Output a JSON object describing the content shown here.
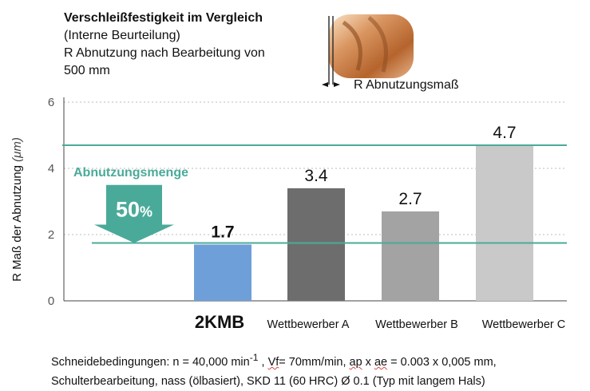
{
  "header": {
    "title": "Verschleißfestigkeit im Vergleich",
    "subtitle": "(Interne Beurteilung)",
    "line3": "R Abnutzung nach Bearbeitung von",
    "line4": "500 mm",
    "r_measure_label": "R Abnutzungsmaß"
  },
  "chart_data": {
    "type": "bar",
    "categories": [
      "2KMB",
      "Wettbewerber A",
      "Wettbewerber B",
      "Wettbewerber C"
    ],
    "values": [
      1.7,
      3.4,
      2.7,
      4.7
    ],
    "value_labels": [
      "1.7",
      "3.4",
      "2.7",
      "4.7"
    ],
    "ylabel": "R Maß der Abnutzung",
    "yunit": "(μm)",
    "ylim": [
      0,
      6
    ],
    "yticks": [
      "0",
      "2",
      "4",
      "6"
    ],
    "grid": true,
    "colors": [
      "#6f9fd8",
      "#6d6d6d",
      "#a3a3a3",
      "#c9c9c9"
    ],
    "reference_lines": [
      1.7,
      4.7
    ],
    "reference_color": "#4aaa99",
    "annotation_title": "Abnutzungsmenge",
    "annotation_value": "50",
    "annotation_unit": "%"
  },
  "footer": {
    "line1_a": "Schneidebedingungen: n = 40,000 min",
    "line1_sup": "-1",
    "line1_b": " , ",
    "line1_vf": "Vf",
    "line1_c": "= 70mm/min, ",
    "line1_ap": "ap",
    "line1_d": " x ",
    "line1_ae": "ae",
    "line1_e": " = 0.003 x 0,005 mm,",
    "line2": "Schulterbearbeitung, nass (ölbasiert), SKD 11 (60 HRC) Ø 0.1 (Typ mit langem Hals)"
  }
}
